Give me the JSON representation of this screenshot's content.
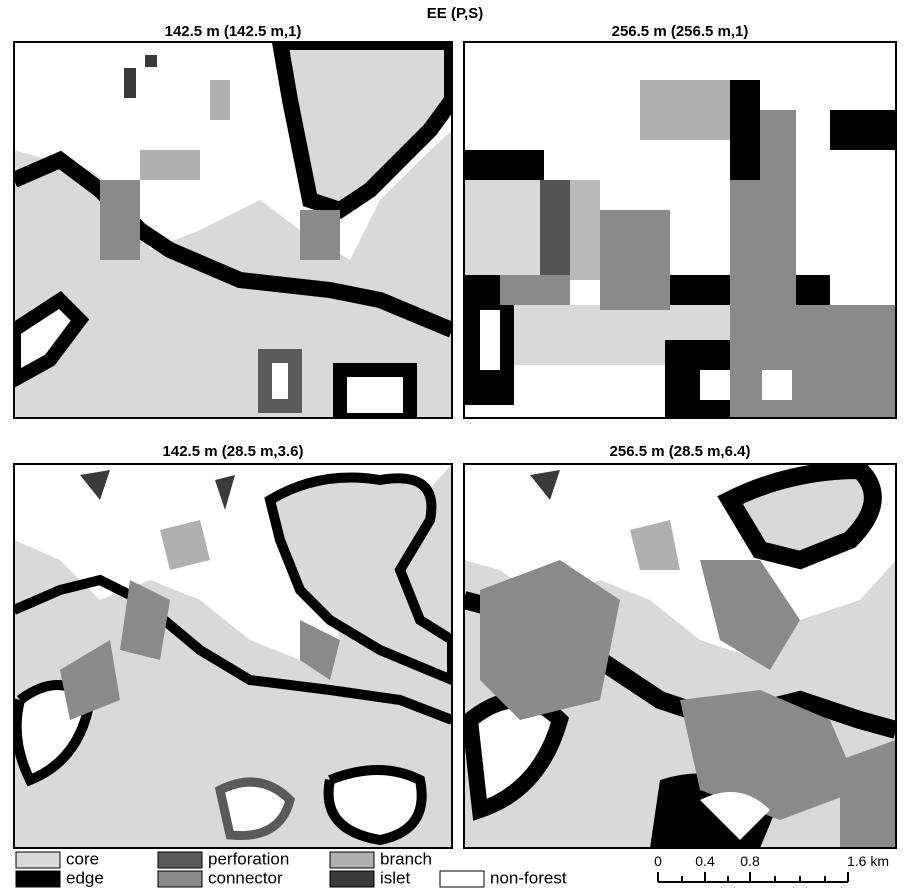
{
  "title": "EE (P,S)",
  "panels": [
    {
      "title": "142.5 m (142.5 m,1)"
    },
    {
      "title": "256.5 m (256.5 m,1)"
    },
    {
      "title": "142.5 m (28.5 m,3.6)"
    },
    {
      "title": "256.5 m (28.5 m,6.4)"
    }
  ],
  "legend": [
    {
      "label": "core",
      "color": "#d9d9d9"
    },
    {
      "label": "perforation",
      "color": "#5a5a5a"
    },
    {
      "label": "branch",
      "color": "#b0b0b0"
    },
    {
      "label": "edge",
      "color": "#000000"
    },
    {
      "label": "connector",
      "color": "#8a8a8a"
    },
    {
      "label": "islet",
      "color": "#3a3a3a"
    },
    {
      "label": "non-forest",
      "color": "#ffffff"
    }
  ],
  "scale_bar": {
    "labels": [
      "0",
      "0.4",
      "0.8",
      "1.6 km"
    ]
  }
}
